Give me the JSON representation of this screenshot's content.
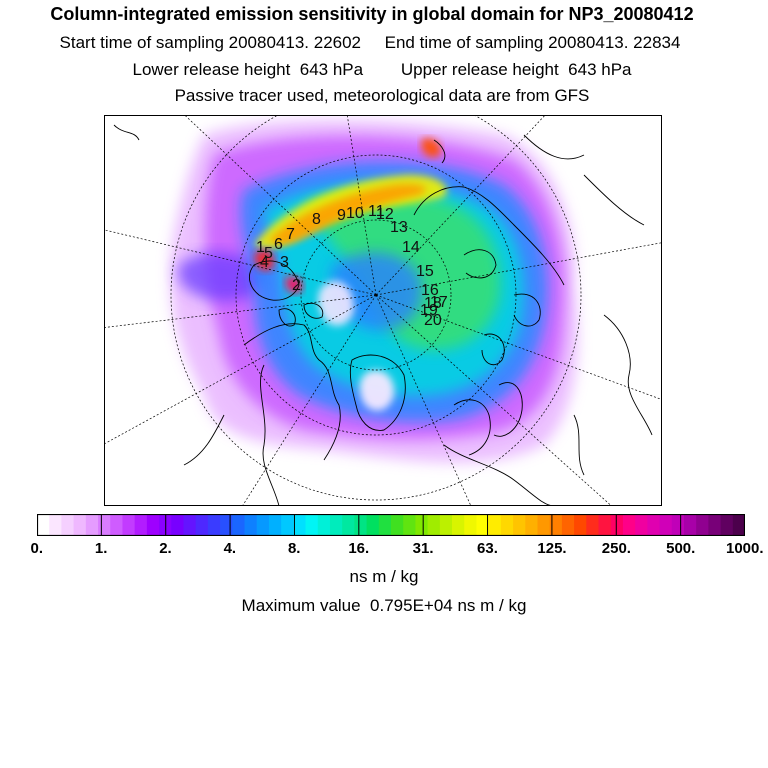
{
  "header": {
    "title": "Column-integrated emission sensitivity in global domain for NP3_20080412",
    "sampling_times": "Start time of sampling 20080413. 22602     End time of sampling 20080413. 22834",
    "release_heights": "Lower release height  643 hPa        Upper release height  643 hPa",
    "tracer_note": "Passive tracer used, meteorological data are from GFS"
  },
  "map": {
    "projection": "north-polar-stereographic",
    "trajectory_labels": [
      "1",
      "2",
      "3",
      "4",
      "5",
      "6",
      "7",
      "8",
      "9",
      "10",
      "11",
      "12",
      "13",
      "14",
      "15",
      "16",
      "17",
      "18",
      "19",
      "20"
    ],
    "colors": {
      "coast": "#000000",
      "graticule": "#000000",
      "label": "#111111"
    }
  },
  "colorbar": {
    "tick_labels": [
      "0.",
      "1.",
      "2.",
      "4.",
      "8.",
      "16.",
      "31.",
      "63.",
      "125.",
      "250.",
      "500.",
      "1000."
    ],
    "unit_label": "ns m / kg",
    "colors": [
      "#ffffff",
      "#fbe6ff",
      "#f5d0ff",
      "#efb8ff",
      "#e59cff",
      "#d97cff",
      "#cf5cff",
      "#c23bff",
      "#b21cff",
      "#9e00ff",
      "#8a00ff",
      "#7800ff",
      "#6414ff",
      "#4e28ff",
      "#3a3cff",
      "#2850ff",
      "#1a66ff",
      "#0e80ff",
      "#0699ff",
      "#00b0ff",
      "#00c8ff",
      "#00e0ff",
      "#00f5f5",
      "#00f0d8",
      "#00ecbc",
      "#00e8a0",
      "#00e484",
      "#00e060",
      "#20e040",
      "#40e020",
      "#60e410",
      "#80e800",
      "#a0ec00",
      "#bcf000",
      "#d8f400",
      "#f0f800",
      "#ffff00",
      "#ffec00",
      "#ffd800",
      "#ffc400",
      "#ffb000",
      "#ff9800",
      "#ff8000",
      "#ff6400",
      "#ff4800",
      "#ff2c1c",
      "#ff1440",
      "#ff0064",
      "#ff0088",
      "#f000a0",
      "#e000b0",
      "#d000b8",
      "#c000b8",
      "#a800a8",
      "#900090",
      "#780078",
      "#600060",
      "#4c004c"
    ]
  },
  "max_value_text": "Maximum value  0.795E+04 ns m / kg"
}
